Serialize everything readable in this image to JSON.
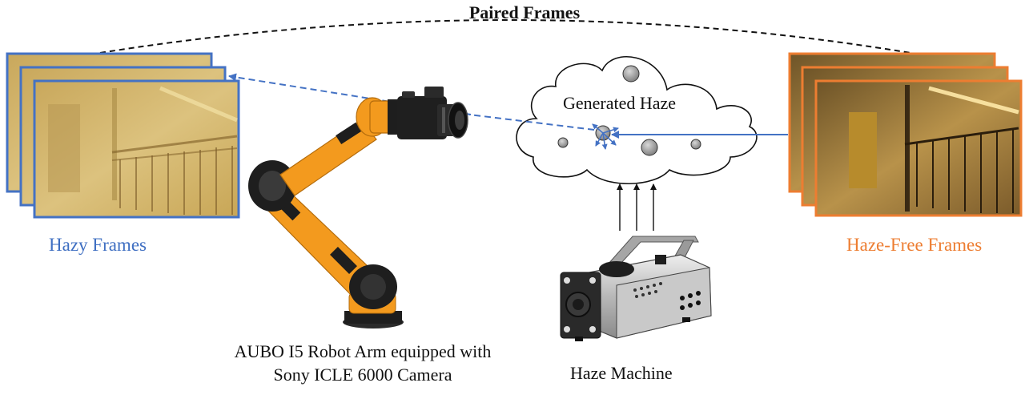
{
  "diagram": {
    "title": "Paired Frames",
    "hazy_frames_label": "Hazy Frames",
    "haze_free_frames_label": "Haze-Free Frames",
    "cloud_label": "Generated Haze",
    "robot_label": "AUBO I5 Robot Arm equipped with Sony ICLE 6000 Camera",
    "machine_label": "Haze Machine"
  },
  "colors": {
    "hazy_border": "#4472c4",
    "haze_free_border": "#ed7d31",
    "arrow_blue": "#4472c4",
    "robot_orange": "#f39a1e",
    "robot_dark": "#1e1e1e"
  }
}
